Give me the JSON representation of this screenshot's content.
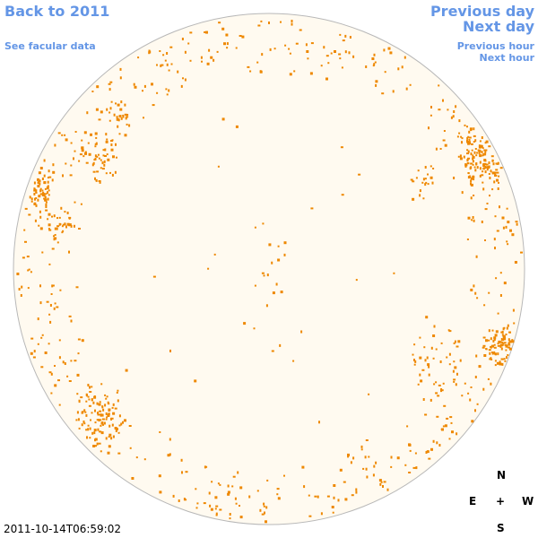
{
  "nav": {
    "back_to_year": "Back to 2011",
    "see_facular": "See facular data",
    "previous_day": "Previous day",
    "next_day": "Next day",
    "previous_hour": "Previous hour",
    "next_hour": "Next hour"
  },
  "compass": {
    "north": "N",
    "south": "S",
    "east": "E",
    "west": "W",
    "center": "+"
  },
  "timestamp": "2011-10-14T06:59:02",
  "colors": {
    "disk_fill": "#fffaf0",
    "disk_edge": "#b8b8b8",
    "feature": "#ee8800",
    "link": "#6496e6"
  }
}
